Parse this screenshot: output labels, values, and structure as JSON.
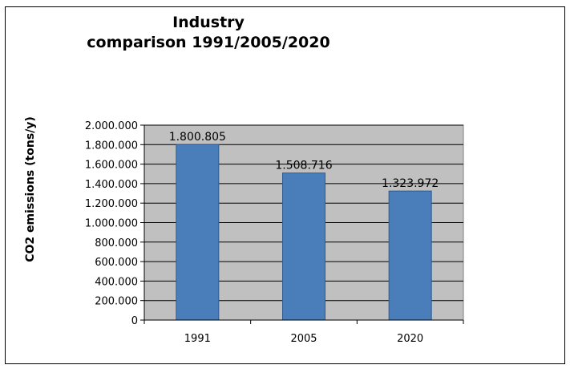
{
  "chart_data": {
    "type": "bar",
    "title_lines": [
      "Industry",
      "comparison  1991/2005/2020"
    ],
    "ylabel": "CO2 emissions (tons/y)",
    "xlabel": "",
    "categories": [
      "1991",
      "2005",
      "2020"
    ],
    "values": [
      1800805,
      1508716,
      1323972
    ],
    "data_labels": [
      "1.800.805",
      "1.508.716",
      "1.323.972"
    ],
    "ylim": [
      0,
      2000000
    ],
    "yticks": [
      0,
      200000,
      400000,
      600000,
      800000,
      1000000,
      1200000,
      1400000,
      1600000,
      1800000,
      2000000
    ],
    "ytick_labels": [
      "0",
      "200.000",
      "400.000",
      "600.000",
      "800.000",
      "1.000.000",
      "1.200.000",
      "1.400.000",
      "1.600.000",
      "1.800.000",
      "2.000.000"
    ],
    "grid": true,
    "legend": "none",
    "colors": {
      "bar": "#4a7ebb",
      "bar_edge": "#2f5a8f",
      "plot_bg": "#c0c0c0",
      "grid": "#000000"
    }
  }
}
